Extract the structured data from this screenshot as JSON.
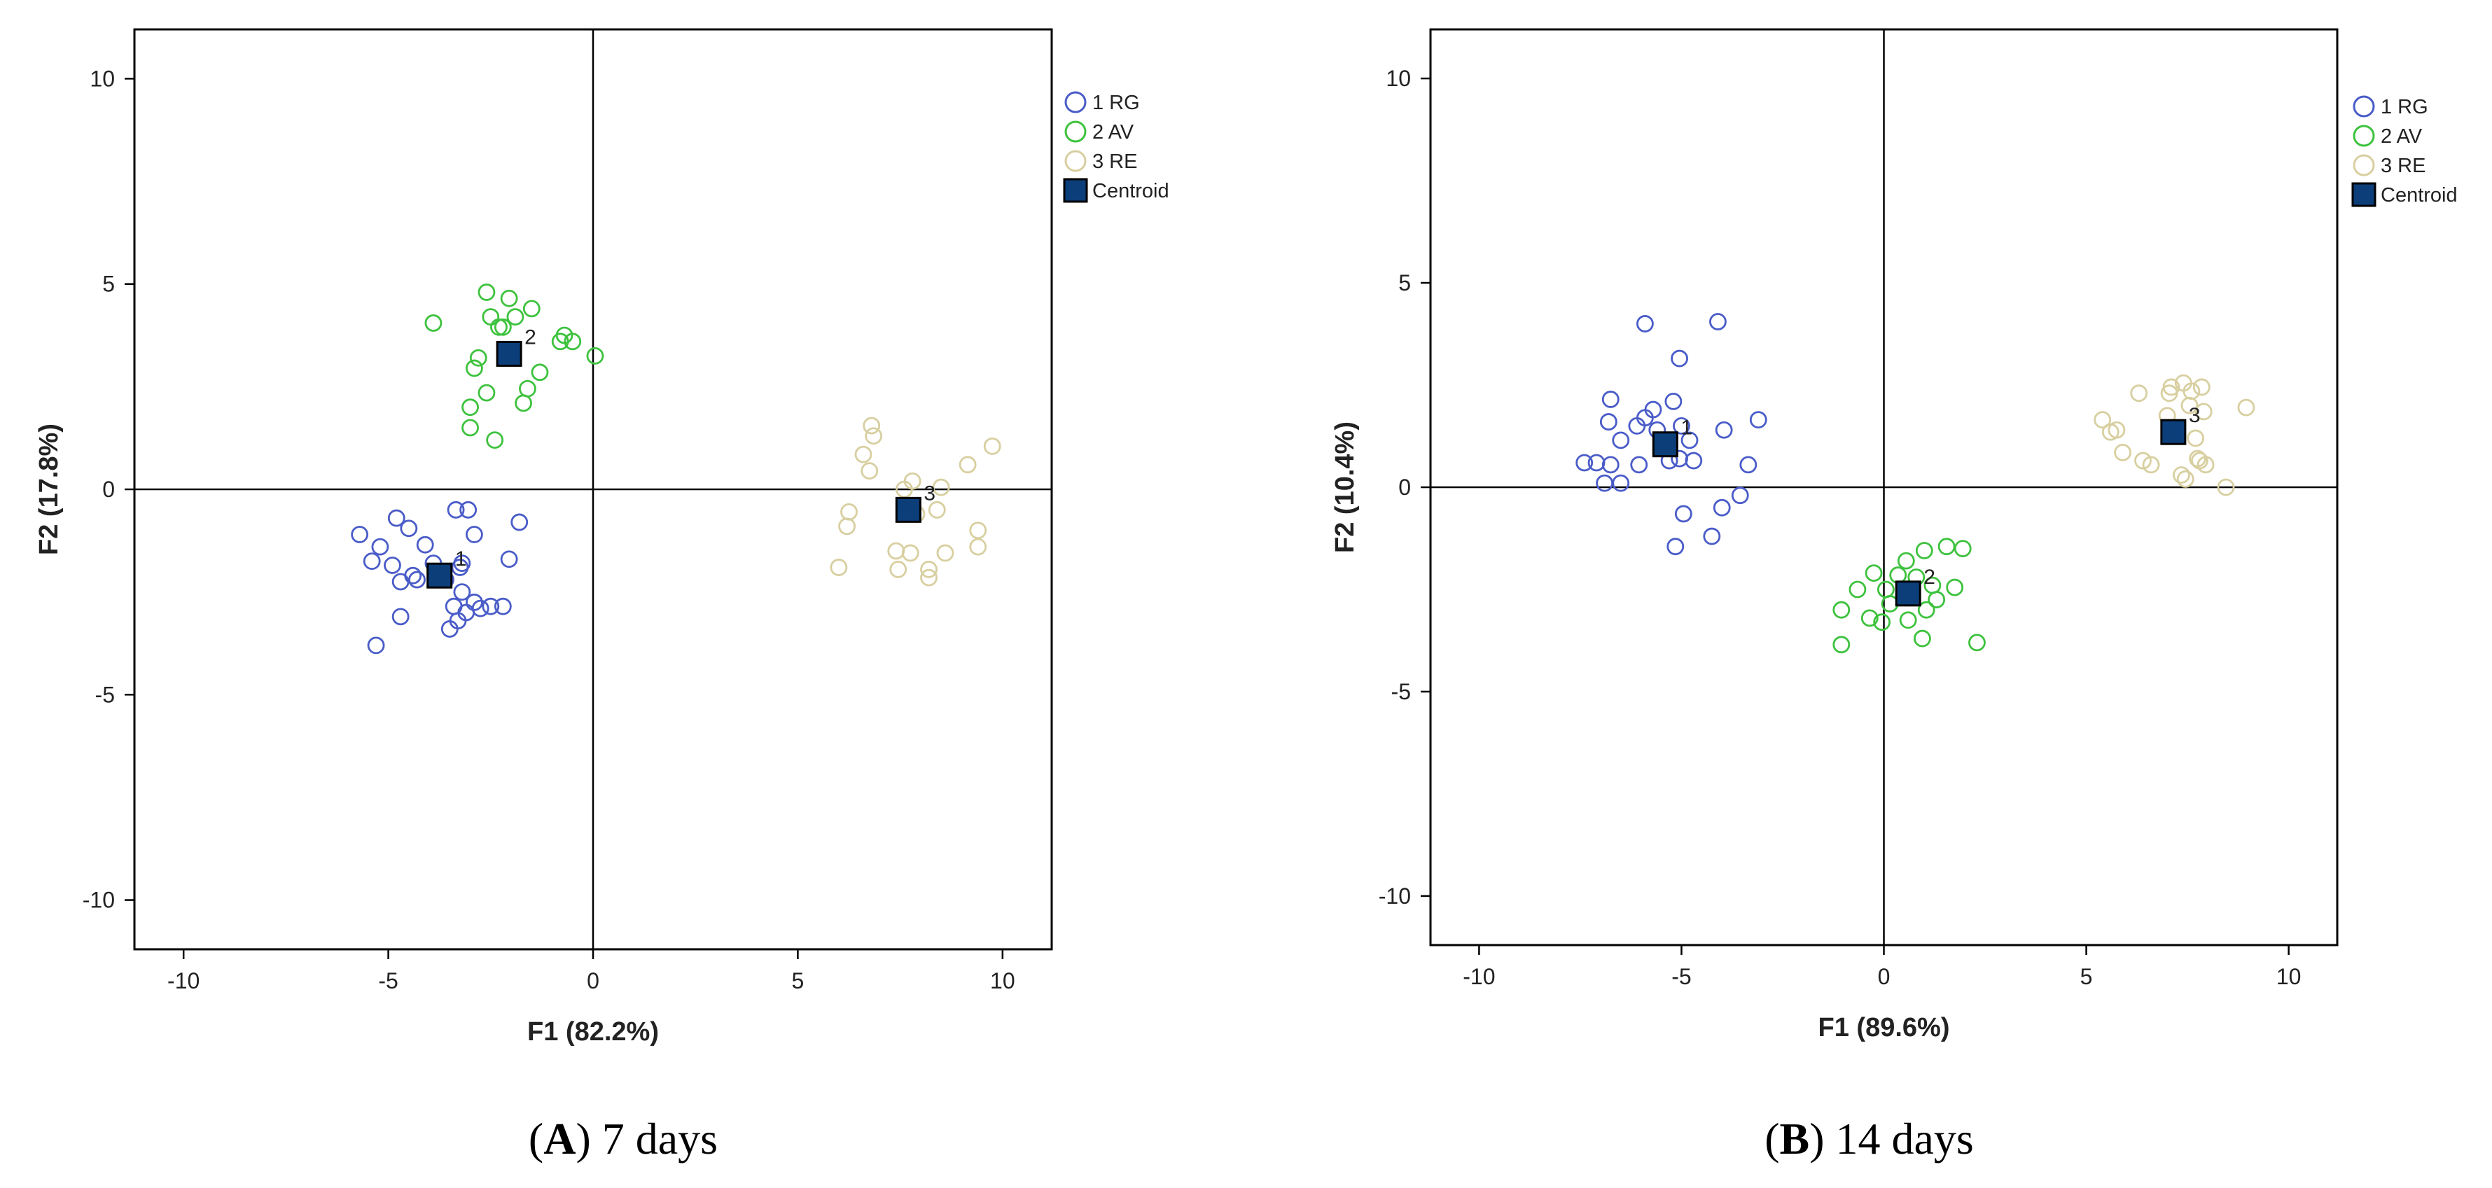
{
  "chart_data": [
    {
      "type": "scatter",
      "xlabel": "F1 (82.2%)",
      "ylabel": "F2 (17.8%)",
      "xlim": [
        -11.2,
        11.2
      ],
      "ylim": [
        -11.2,
        11.2
      ],
      "xticks": [
        -10,
        -5,
        0,
        5,
        10
      ],
      "yticks": [
        -10,
        -5,
        0,
        5,
        10
      ],
      "grid": false,
      "legend_position": "top-right",
      "caption": {
        "letter": "A",
        "text": " 7 days"
      },
      "series": [
        {
          "name": "1 RG",
          "color": "#4a5cc8",
          "points": [
            [
              -5.7,
              -1.1
            ],
            [
              -5.4,
              -1.75
            ],
            [
              -5.2,
              -1.4
            ],
            [
              -5.3,
              -3.8
            ],
            [
              -4.9,
              -1.85
            ],
            [
              -4.8,
              -0.7
            ],
            [
              -4.7,
              -2.25
            ],
            [
              -4.7,
              -3.1
            ],
            [
              -4.5,
              -0.95
            ],
            [
              -4.4,
              -2.1
            ],
            [
              -4.3,
              -2.2
            ],
            [
              -4.1,
              -1.35
            ],
            [
              -3.9,
              -1.8
            ],
            [
              -3.6,
              -2.2
            ],
            [
              -3.5,
              -3.4
            ],
            [
              -3.4,
              -2.85
            ],
            [
              -3.35,
              -0.5
            ],
            [
              -3.3,
              -3.2
            ],
            [
              -3.25,
              -1.9
            ],
            [
              -3.2,
              -1.8
            ],
            [
              -3.2,
              -2.5
            ],
            [
              -3.1,
              -3.0
            ],
            [
              -3.05,
              -0.5
            ],
            [
              -2.9,
              -1.1
            ],
            [
              -2.9,
              -2.75
            ],
            [
              -2.75,
              -2.9
            ],
            [
              -2.5,
              -2.85
            ],
            [
              -2.2,
              -2.85
            ],
            [
              -2.05,
              -1.7
            ],
            [
              -1.8,
              -0.8
            ]
          ]
        },
        {
          "name": "2 AV",
          "color": "#3ec23e",
          "points": [
            [
              -3.9,
              4.05
            ],
            [
              -3.0,
              2.0
            ],
            [
              -3.0,
              1.5
            ],
            [
              -2.9,
              2.95
            ],
            [
              -2.8,
              3.2
            ],
            [
              -2.6,
              4.8
            ],
            [
              -2.6,
              2.35
            ],
            [
              -2.5,
              4.2
            ],
            [
              -2.4,
              1.2
            ],
            [
              -2.3,
              3.95
            ],
            [
              -2.2,
              3.95
            ],
            [
              -2.05,
              4.65
            ],
            [
              -1.9,
              4.2
            ],
            [
              -1.7,
              2.1
            ],
            [
              -1.6,
              2.45
            ],
            [
              -1.5,
              4.4
            ],
            [
              -1.3,
              2.85
            ],
            [
              -0.8,
              3.6
            ],
            [
              -0.7,
              3.75
            ],
            [
              -0.5,
              3.6
            ],
            [
              0.05,
              3.25
            ]
          ]
        },
        {
          "name": "3 RE",
          "color": "#d8cfa0",
          "points": [
            [
              6.0,
              -1.9
            ],
            [
              6.2,
              -0.9
            ],
            [
              6.25,
              -0.55
            ],
            [
              6.6,
              0.85
            ],
            [
              6.75,
              0.45
            ],
            [
              6.8,
              1.55
            ],
            [
              6.85,
              1.3
            ],
            [
              7.4,
              -1.5
            ],
            [
              7.45,
              -1.95
            ],
            [
              7.6,
              0.0
            ],
            [
              7.75,
              -1.55
            ],
            [
              7.8,
              0.2
            ],
            [
              7.9,
              -0.6
            ],
            [
              8.2,
              -1.95
            ],
            [
              8.2,
              -2.15
            ],
            [
              8.4,
              -0.5
            ],
            [
              8.5,
              0.05
            ],
            [
              8.6,
              -1.55
            ],
            [
              9.15,
              0.6
            ],
            [
              9.4,
              -1.0
            ],
            [
              9.4,
              -1.4
            ],
            [
              9.75,
              1.05
            ]
          ]
        },
        {
          "name": "Centroid",
          "color": "#0c3f7a",
          "points": [
            [
              -3.75,
              -2.1
            ],
            [
              -2.05,
              3.3
            ],
            [
              7.7,
              -0.5
            ]
          ],
          "labels": [
            "1",
            "2",
            "3"
          ]
        }
      ]
    },
    {
      "type": "scatter",
      "xlabel": "F1 (89.6%)",
      "ylabel": "F2 (10.4%)",
      "xlim": [
        -11.2,
        11.2
      ],
      "ylim": [
        -11.2,
        11.2
      ],
      "xticks": [
        -10,
        -5,
        0,
        5,
        10
      ],
      "yticks": [
        -10,
        -5,
        0,
        5,
        10
      ],
      "grid": false,
      "legend_position": "top-right",
      "caption": {
        "letter": "B",
        "text": " 14 days"
      },
      "series": [
        {
          "name": "1 RG",
          "color": "#4a5cc8",
          "points": [
            [
              -7.4,
              0.6
            ],
            [
              -7.1,
              0.6
            ],
            [
              -6.9,
              0.1
            ],
            [
              -6.8,
              1.6
            ],
            [
              -6.75,
              0.55
            ],
            [
              -6.75,
              2.15
            ],
            [
              -6.5,
              1.15
            ],
            [
              -6.5,
              0.1
            ],
            [
              -6.1,
              1.5
            ],
            [
              -6.05,
              0.55
            ],
            [
              -5.9,
              1.7
            ],
            [
              -5.9,
              4.0
            ],
            [
              -5.7,
              1.9
            ],
            [
              -5.6,
              1.4
            ],
            [
              -5.3,
              0.65
            ],
            [
              -5.2,
              2.1
            ],
            [
              -5.15,
              -1.45
            ],
            [
              -5.05,
              3.15
            ],
            [
              -5.05,
              0.7
            ],
            [
              -5.0,
              1.5
            ],
            [
              -4.95,
              -0.65
            ],
            [
              -4.8,
              1.15
            ],
            [
              -4.7,
              0.65
            ],
            [
              -4.25,
              -1.2
            ],
            [
              -4.1,
              4.05
            ],
            [
              -4.0,
              -0.5
            ],
            [
              -3.95,
              1.4
            ],
            [
              -3.55,
              -0.2
            ],
            [
              -3.35,
              0.55
            ],
            [
              -3.1,
              1.65
            ]
          ]
        },
        {
          "name": "2 AV",
          "color": "#3ec23e",
          "points": [
            [
              -1.05,
              -3.0
            ],
            [
              -1.05,
              -3.85
            ],
            [
              -0.65,
              -2.5
            ],
            [
              -0.35,
              -3.2
            ],
            [
              -0.25,
              -2.1
            ],
            [
              -0.05,
              -3.3
            ],
            [
              0.05,
              -2.5
            ],
            [
              0.15,
              -2.85
            ],
            [
              0.35,
              -2.15
            ],
            [
              0.5,
              -2.55
            ],
            [
              0.55,
              -1.8
            ],
            [
              0.6,
              -3.25
            ],
            [
              0.8,
              -2.2
            ],
            [
              0.95,
              -3.7
            ],
            [
              1.0,
              -1.55
            ],
            [
              1.05,
              -3.0
            ],
            [
              1.2,
              -2.4
            ],
            [
              1.3,
              -2.75
            ],
            [
              1.55,
              -1.45
            ],
            [
              1.75,
              -2.45
            ],
            [
              1.95,
              -1.5
            ],
            [
              2.3,
              -3.8
            ]
          ]
        },
        {
          "name": "3 RE",
          "color": "#d8cfa0",
          "points": [
            [
              5.4,
              1.65
            ],
            [
              5.6,
              1.35
            ],
            [
              5.75,
              1.4
            ],
            [
              5.9,
              0.85
            ],
            [
              6.3,
              2.3
            ],
            [
              6.4,
              0.65
            ],
            [
              6.6,
              0.55
            ],
            [
              7.0,
              1.75
            ],
            [
              7.05,
              2.3
            ],
            [
              7.1,
              2.45
            ],
            [
              7.35,
              0.3
            ],
            [
              7.4,
              2.55
            ],
            [
              7.45,
              0.2
            ],
            [
              7.55,
              2.0
            ],
            [
              7.6,
              2.35
            ],
            [
              7.7,
              1.2
            ],
            [
              7.75,
              0.7
            ],
            [
              7.8,
              0.65
            ],
            [
              7.85,
              2.45
            ],
            [
              7.9,
              1.85
            ],
            [
              7.95,
              0.55
            ],
            [
              8.45,
              0.0
            ],
            [
              8.95,
              1.95
            ]
          ]
        },
        {
          "name": "Centroid",
          "color": "#0c3f7a",
          "points": [
            [
              -5.4,
              1.05
            ],
            [
              0.6,
              -2.6
            ],
            [
              7.15,
              1.35
            ]
          ],
          "labels": [
            "1",
            "2",
            "3"
          ]
        }
      ]
    }
  ]
}
